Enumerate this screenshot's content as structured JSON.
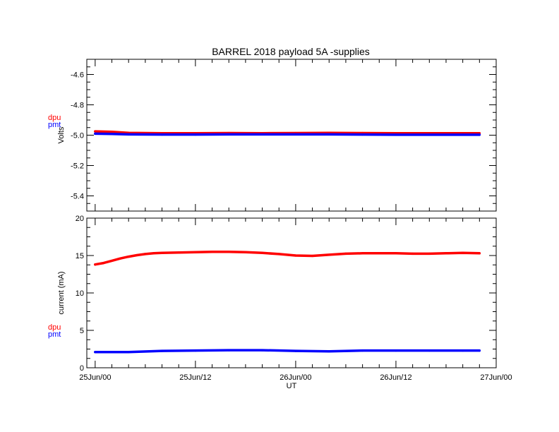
{
  "title": "BARREL 2018 payload 5A -supplies",
  "colors": {
    "dpu": "#ff0000",
    "pmt": "#0000ff",
    "axis": "#000000"
  },
  "chart_data": [
    {
      "type": "line",
      "ylabel": "Volts",
      "xlabel": "",
      "ylim": [
        -5.5,
        -4.5
      ],
      "yticks": [
        "-4.6",
        "-4.8",
        "-5.0",
        "-5.2",
        "-5.4"
      ],
      "ytick_values": [
        -4.6,
        -4.8,
        -5.0,
        -5.2,
        -5.4
      ],
      "legend": [
        "dpu",
        "pmt"
      ],
      "legend_position": "left",
      "series": [
        {
          "name": "dpu",
          "color": "#ff0000",
          "x": [
            0,
            2,
            4,
            8,
            12,
            16,
            20,
            24,
            28,
            32,
            36,
            40,
            44,
            46
          ],
          "y": [
            -4.975,
            -4.978,
            -4.985,
            -4.987,
            -4.987,
            -4.986,
            -4.987,
            -4.986,
            -4.985,
            -4.986,
            -4.987,
            -4.987,
            -4.987,
            -4.987
          ]
        },
        {
          "name": "pmt",
          "color": "#0000ff",
          "x": [
            0,
            2,
            4,
            8,
            12,
            16,
            20,
            24,
            28,
            32,
            36,
            40,
            44,
            46
          ],
          "y": [
            -4.99,
            -4.992,
            -4.995,
            -4.996,
            -4.996,
            -4.995,
            -4.995,
            -4.995,
            -4.995,
            -4.996,
            -4.997,
            -4.997,
            -4.997,
            -4.997
          ]
        }
      ]
    },
    {
      "type": "line",
      "ylabel": "current (mA)",
      "xlabel": "UT",
      "ylim": [
        0,
        20
      ],
      "yticks": [
        "0",
        "5",
        "10",
        "15",
        "20"
      ],
      "ytick_values": [
        0,
        5,
        10,
        15,
        20
      ],
      "legend": [
        "dpu",
        "pmt"
      ],
      "legend_position": "left",
      "x_unit": "hours since 25Jun/00",
      "xlim": [
        -1,
        48
      ],
      "xticks": [
        "25Jun/00",
        "25Jun/12",
        "26Jun/00",
        "26Jun/12",
        "27Jun/00"
      ],
      "xtick_values": [
        0,
        12,
        24,
        36,
        48
      ],
      "series": [
        {
          "name": "dpu",
          "color": "#ff0000",
          "x": [
            0,
            1,
            2,
            3,
            4,
            5,
            6,
            7,
            8,
            10,
            12,
            14,
            16,
            18,
            20,
            22,
            24,
            26,
            28,
            30,
            32,
            34,
            36,
            38,
            40,
            42,
            44,
            46
          ],
          "y": [
            13.8,
            14.0,
            14.3,
            14.6,
            14.85,
            15.05,
            15.2,
            15.3,
            15.35,
            15.4,
            15.45,
            15.5,
            15.5,
            15.45,
            15.35,
            15.2,
            15.0,
            14.95,
            15.1,
            15.25,
            15.3,
            15.3,
            15.3,
            15.25,
            15.25,
            15.3,
            15.35,
            15.3
          ]
        },
        {
          "name": "pmt",
          "color": "#0000ff",
          "x": [
            0,
            4,
            8,
            12,
            16,
            20,
            24,
            28,
            32,
            36,
            40,
            44,
            46
          ],
          "y": [
            2.1,
            2.1,
            2.25,
            2.3,
            2.35,
            2.35,
            2.25,
            2.2,
            2.3,
            2.3,
            2.3,
            2.3,
            2.3
          ]
        }
      ]
    }
  ]
}
